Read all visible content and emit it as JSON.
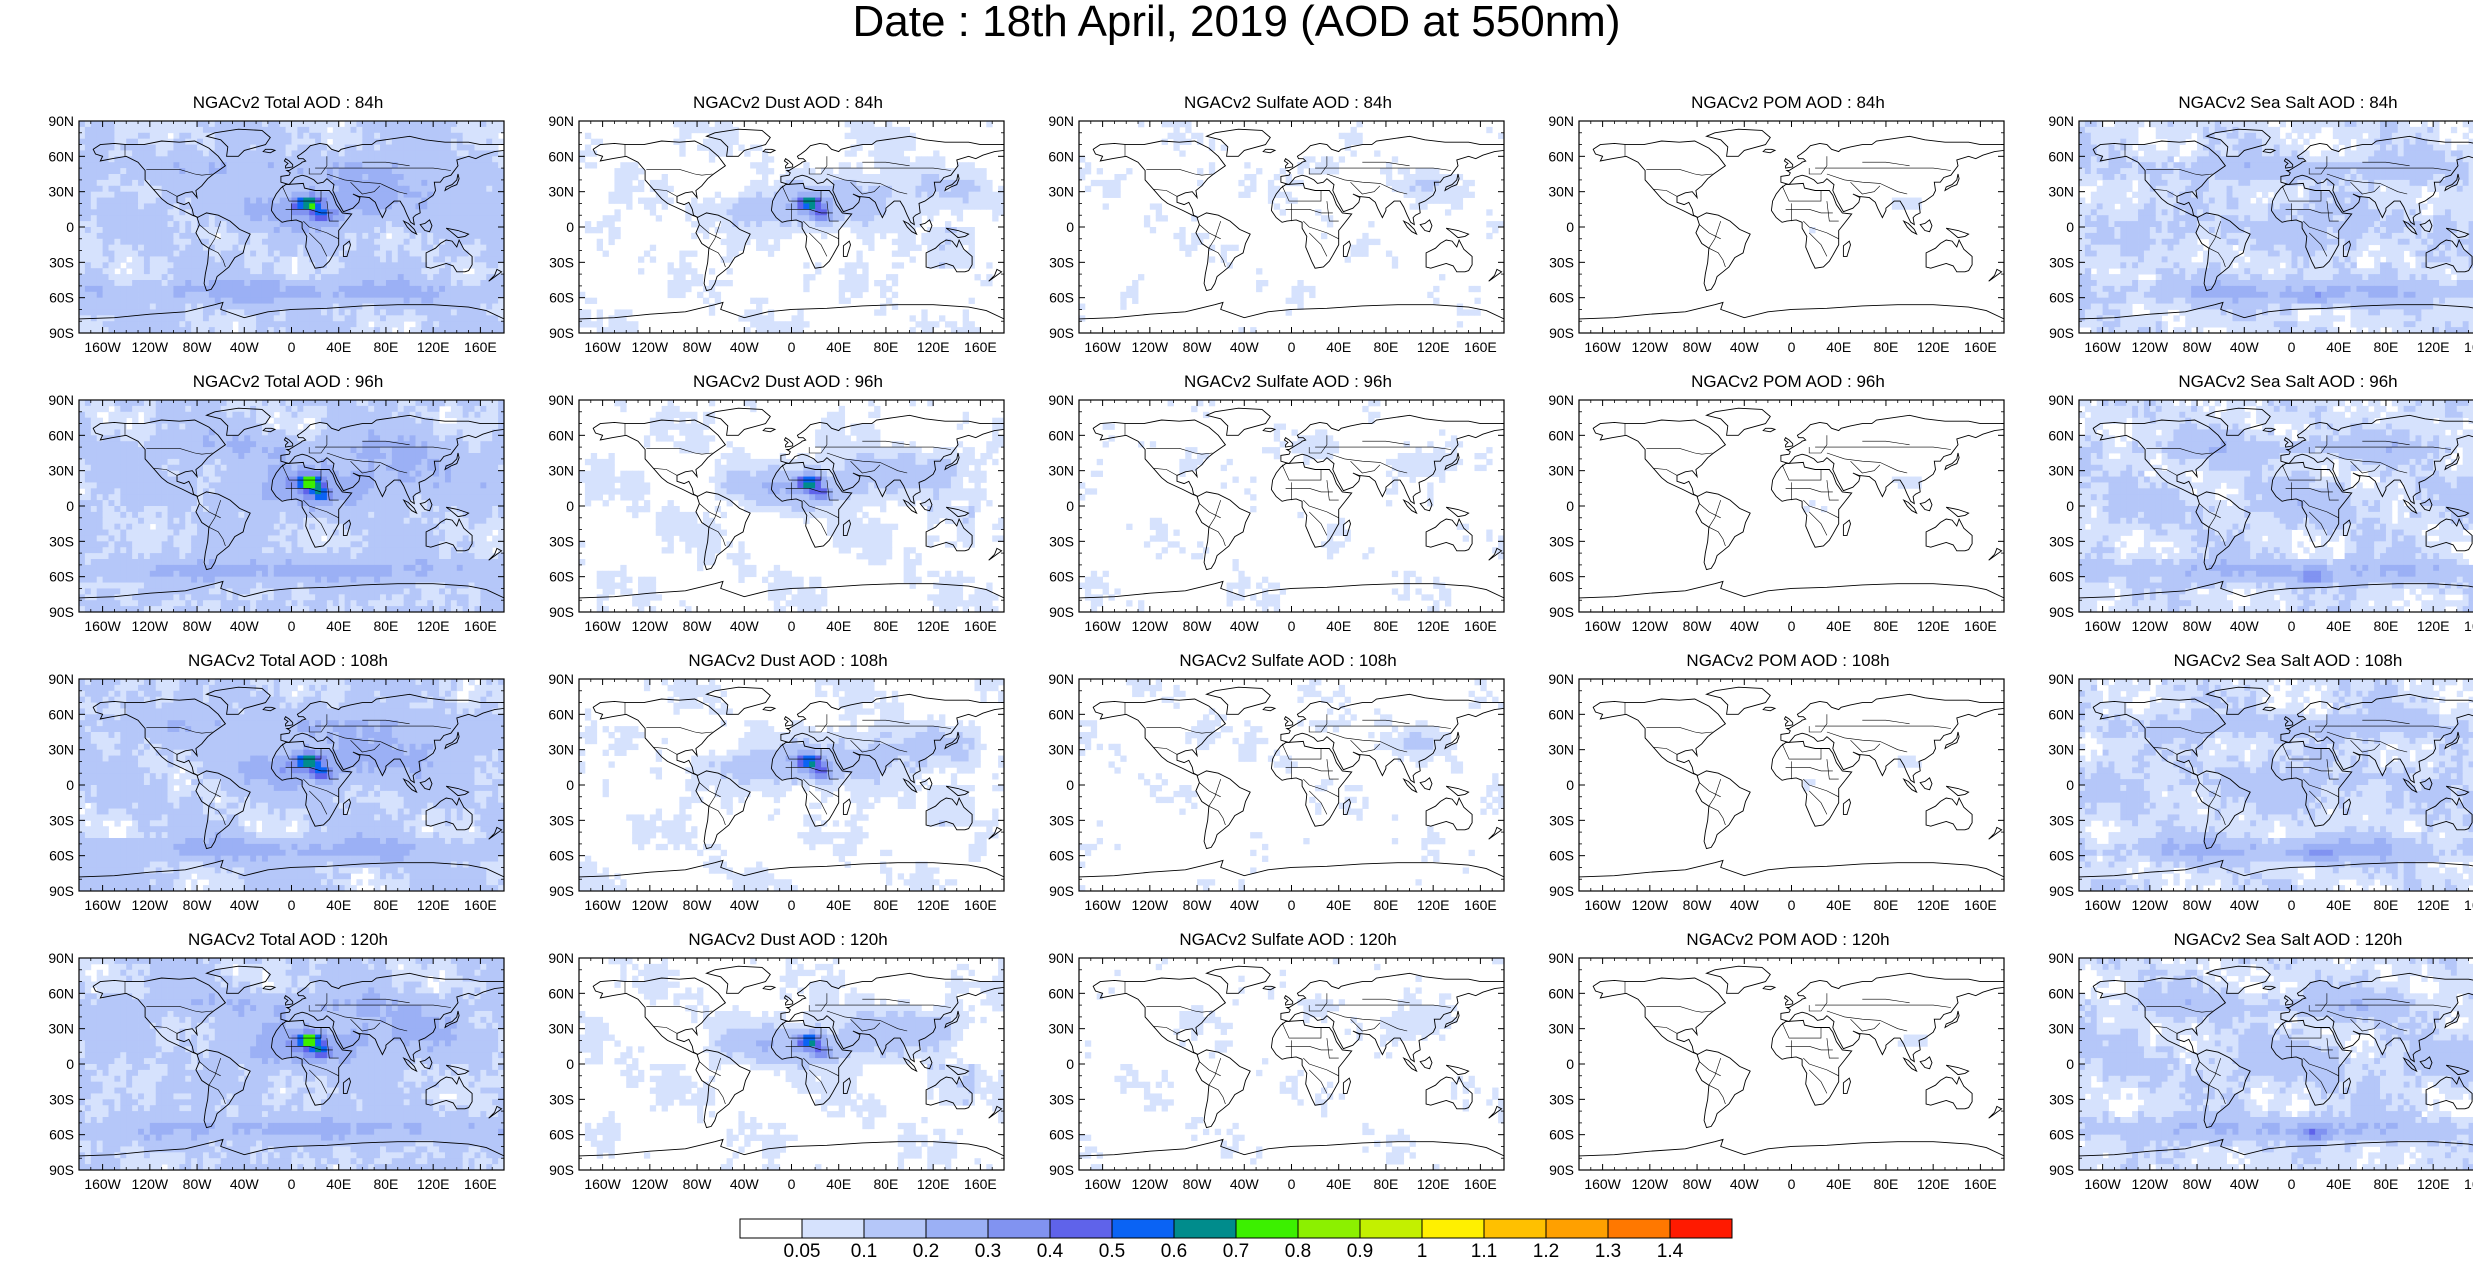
{
  "figure": {
    "title": "Date : 18th April, 2019 (AOD at 550nm)"
  },
  "panels": [
    {
      "title": "NGACv2 Total AOD : 84h",
      "field": "total"
    },
    {
      "title": "NGACv2 Dust AOD : 84h",
      "field": "dust"
    },
    {
      "title": "NGACv2 Sulfate AOD : 84h",
      "field": "sulfate"
    },
    {
      "title": "NGACv2 POM AOD : 84h",
      "field": "pom"
    },
    {
      "title": "NGACv2 Sea Salt AOD : 84h",
      "field": "seasalt"
    },
    {
      "title": "NGACv2 Total AOD : 96h",
      "field": "total"
    },
    {
      "title": "NGACv2 Dust AOD : 96h",
      "field": "dust"
    },
    {
      "title": "NGACv2 Sulfate AOD : 96h",
      "field": "sulfate"
    },
    {
      "title": "NGACv2 POM AOD : 96h",
      "field": "pom"
    },
    {
      "title": "NGACv2 Sea Salt AOD : 96h",
      "field": "seasalt"
    },
    {
      "title": "NGACv2 Total AOD : 108h",
      "field": "total"
    },
    {
      "title": "NGACv2 Dust AOD : 108h",
      "field": "dust"
    },
    {
      "title": "NGACv2 Sulfate AOD : 108h",
      "field": "sulfate"
    },
    {
      "title": "NGACv2 POM AOD : 108h",
      "field": "pom"
    },
    {
      "title": "NGACv2 Sea Salt AOD : 108h",
      "field": "seasalt"
    },
    {
      "title": "NGACv2 Total AOD : 120h",
      "field": "total"
    },
    {
      "title": "NGACv2 Dust AOD : 120h",
      "field": "dust"
    },
    {
      "title": "NGACv2 Sulfate AOD : 120h",
      "field": "sulfate"
    },
    {
      "title": "NGACv2 POM AOD : 120h",
      "field": "pom"
    },
    {
      "title": "NGACv2 Sea Salt  AOD : 120h",
      "field": "seasalt"
    }
  ],
  "axes": {
    "lat_labels": [
      "90N",
      "60N",
      "30N",
      "0",
      "30S",
      "60S",
      "90S"
    ],
    "lon_labels": [
      "160W",
      "120W",
      "80W",
      "40W",
      "0",
      "40E",
      "80E",
      "120E",
      "160E"
    ]
  },
  "colorbar": {
    "labels": [
      "0.05",
      "0.1",
      "0.2",
      "0.3",
      "0.4",
      "0.5",
      "0.6",
      "0.7",
      "0.8",
      "0.9",
      "1",
      "1.1",
      "1.2",
      "1.3",
      "1.4"
    ],
    "colors": [
      "#ffffff",
      "#d6e2fd",
      "#b5c7f9",
      "#9bb0f5",
      "#8193f1",
      "#5f63ea",
      "#0a63f4",
      "#008c8c",
      "#3cf000",
      "#8cf000",
      "#c3f000",
      "#fff000",
      "#ffc000",
      "#ffa000",
      "#ff7800",
      "#ff1a00"
    ]
  }
}
